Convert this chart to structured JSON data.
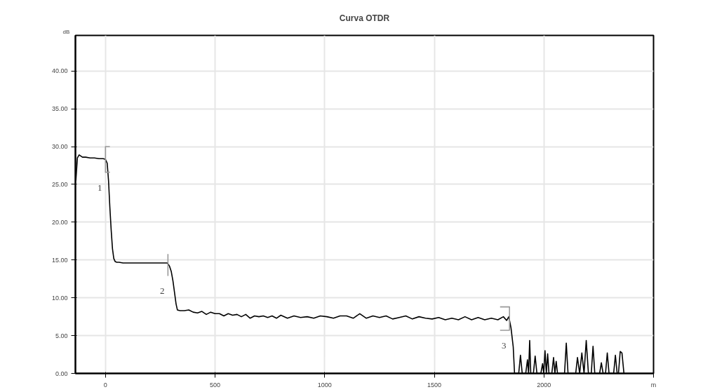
{
  "chart_data": {
    "type": "line",
    "title": "Curva OTDR",
    "ylabel": "dB",
    "xlim": [
      -137,
      2500
    ],
    "ylim": [
      0,
      44.7
    ],
    "xticks": [
      0,
      500,
      1000,
      1500,
      2000,
      {
        "value": 2500,
        "label": "m"
      }
    ],
    "yticks": [
      {
        "value": 0,
        "label": "0.00"
      },
      {
        "value": 5,
        "label": "5.00"
      },
      {
        "value": 10,
        "label": "10.00"
      },
      {
        "value": 15,
        "label": "15.00"
      },
      {
        "value": 20,
        "label": "20.00"
      },
      {
        "value": 25,
        "label": "25.00"
      },
      {
        "value": 30,
        "label": "30.00"
      },
      {
        "value": 35,
        "label": "35.00"
      },
      {
        "value": 40,
        "label": "40.00"
      }
    ],
    "grid": true,
    "marker": "none",
    "line_style": "solid",
    "series": [
      {
        "color": "#000000",
        "x": [
          -135,
          -128,
          -120,
          -105,
          -90,
          -70,
          -50,
          -30,
          -10,
          0,
          8,
          14,
          20,
          26,
          32,
          38,
          44,
          52,
          62,
          80,
          100,
          150,
          200,
          250,
          282,
          292,
          300,
          308,
          316,
          322,
          328,
          340,
          360,
          380,
          400,
          420,
          440,
          460,
          480,
          500,
          520,
          540,
          560,
          580,
          600,
          620,
          640,
          660,
          680,
          700,
          720,
          740,
          760,
          780,
          800,
          830,
          860,
          890,
          920,
          950,
          980,
          1010,
          1040,
          1070,
          1100,
          1130,
          1160,
          1190,
          1220,
          1250,
          1280,
          1310,
          1340,
          1370,
          1400,
          1430,
          1460,
          1490,
          1520,
          1550,
          1580,
          1610,
          1640,
          1670,
          1700,
          1730,
          1760,
          1790,
          1815,
          1830,
          1840,
          1850,
          1860,
          1866,
          1885,
          1893,
          1901,
          1917,
          1925,
          1930,
          1935,
          1940,
          1952,
          1960,
          1968,
          1986,
          1994,
          1999,
          2005,
          2011,
          2017,
          2023,
          2036,
          2044,
          2050,
          2056,
          2062,
          2094,
          2102,
          2110,
          2145,
          2153,
          2163,
          2173,
          2183,
          2193,
          2203,
          2216,
          2224,
          2232,
          2254,
          2262,
          2270,
          2281,
          2289,
          2297,
          2318,
          2326,
          2334,
          2340,
          2348,
          2356,
          2365
        ],
        "values": [
          25.5,
          28.5,
          28.9,
          28.6,
          28.6,
          28.5,
          28.5,
          28.4,
          28.4,
          28.3,
          27.8,
          25.5,
          22.0,
          19.0,
          16.5,
          15.2,
          14.8,
          14.7,
          14.7,
          14.6,
          14.6,
          14.6,
          14.6,
          14.6,
          14.6,
          14.2,
          13.5,
          12.2,
          10.5,
          9.2,
          8.4,
          8.3,
          8.3,
          8.4,
          8.1,
          8.0,
          8.2,
          7.8,
          8.1,
          7.9,
          7.9,
          7.6,
          7.9,
          7.7,
          7.8,
          7.5,
          7.8,
          7.3,
          7.6,
          7.5,
          7.6,
          7.4,
          7.6,
          7.3,
          7.7,
          7.3,
          7.6,
          7.4,
          7.5,
          7.3,
          7.6,
          7.5,
          7.3,
          7.6,
          7.6,
          7.3,
          7.9,
          7.3,
          7.6,
          7.4,
          7.6,
          7.2,
          7.4,
          7.6,
          7.2,
          7.5,
          7.3,
          7.2,
          7.4,
          7.1,
          7.3,
          7.1,
          7.5,
          7.1,
          7.4,
          7.1,
          7.3,
          7.1,
          7.5,
          7.0,
          7.5,
          6.0,
          3.5,
          0,
          0,
          2.4,
          0,
          0,
          1.8,
          0,
          4.35,
          0,
          0,
          2.3,
          0,
          0,
          1.3,
          0,
          3.0,
          0,
          2.6,
          0,
          0,
          2.1,
          0,
          1.6,
          0,
          0,
          4.0,
          0,
          0,
          2.1,
          0,
          2.7,
          0,
          4.35,
          0,
          0,
          3.6,
          0,
          0,
          1.4,
          0,
          0,
          2.7,
          0,
          0,
          2.4,
          0,
          0,
          2.9,
          2.7,
          0
        ]
      },
      {
        "color": "#999999",
        "x": [
          20,
          0,
          0,
          20
        ],
        "values": [
          30,
          30,
          26.6,
          26.6
        ]
      },
      {
        "color": "#999999",
        "x": [
          285,
          285
        ],
        "values": [
          15.8,
          12.9
        ]
      },
      {
        "color": "#999999",
        "x": [
          1800,
          1843,
          1843,
          1800
        ],
        "values": [
          8.8,
          8.8,
          5.7,
          5.7
        ]
      }
    ],
    "annotations": [
      "1",
      "2",
      "3"
    ]
  }
}
